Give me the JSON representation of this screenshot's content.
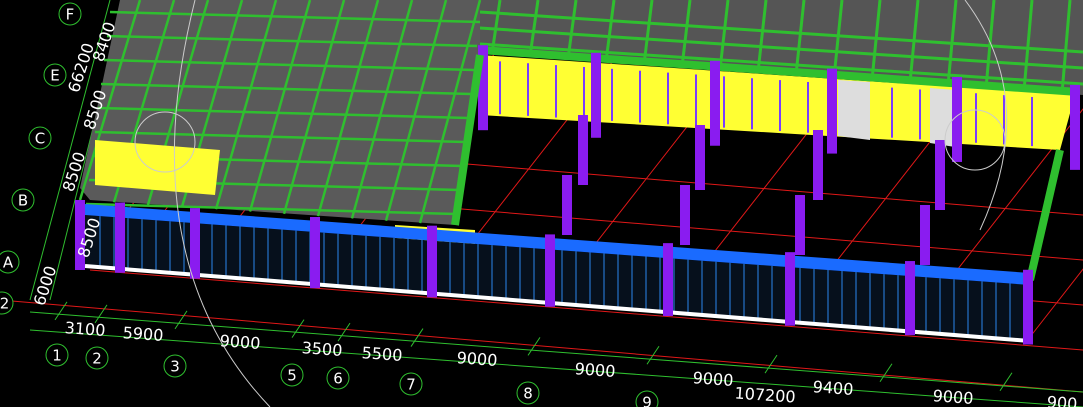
{
  "row_axes": [
    {
      "label": "F"
    },
    {
      "label": "E"
    },
    {
      "label": "C"
    },
    {
      "label": "B"
    },
    {
      "label": "A"
    },
    {
      "label": "/2"
    }
  ],
  "row_dims": [
    "8400",
    "66200",
    "8500",
    "8500",
    "8500",
    "6000"
  ],
  "col_axes": [
    {
      "label": "1"
    },
    {
      "label": "2"
    },
    {
      "label": "3"
    },
    {
      "label": "5"
    },
    {
      "label": "6"
    },
    {
      "label": "7"
    },
    {
      "label": "8"
    },
    {
      "label": "9"
    }
  ],
  "col_dims": [
    "3100",
    "5900",
    "9000",
    "3500",
    "5500",
    "9000",
    "9000",
    "9000",
    "107200",
    "9400",
    "9000",
    "900"
  ]
}
